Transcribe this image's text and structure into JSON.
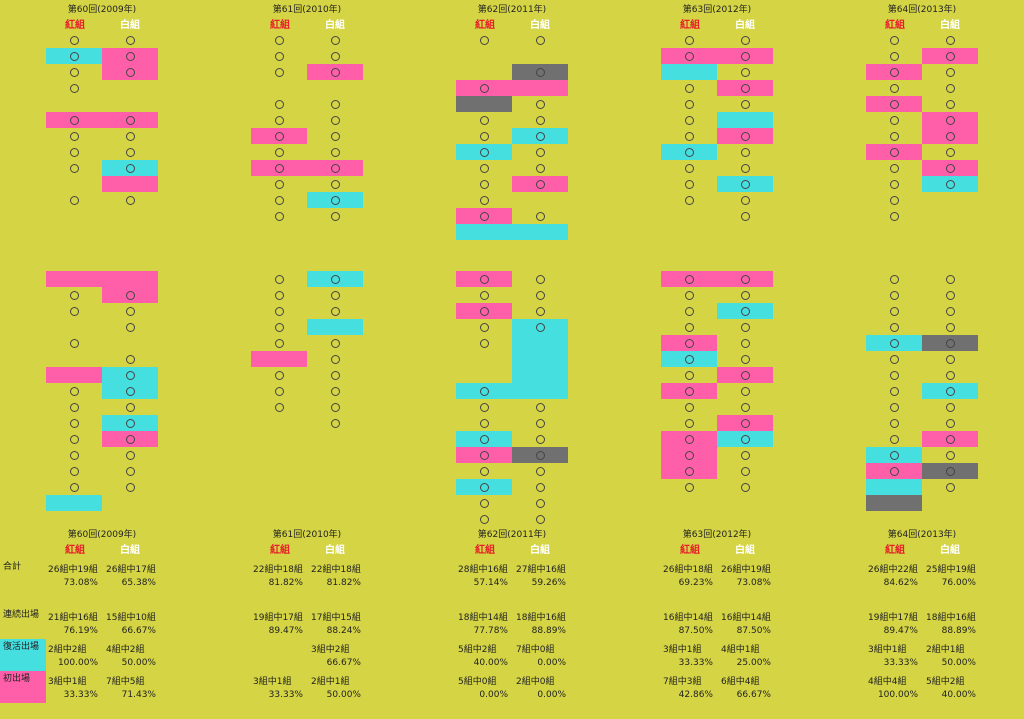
{
  "headers": [
    "第60回(2009年)",
    "第61回(2010年)",
    "第62回(2011年)",
    "第63回(2012年)",
    "第64回(2013年)"
  ],
  "team_red": "紅組",
  "team_white": "白組",
  "legend": {
    "total": "合計",
    "continuing": "連続出場",
    "return": "復活出場",
    "debut": "初出場"
  },
  "colors": {
    "background": "#d4d445",
    "pink": "#ff5fa8",
    "cyan": "#45dfe0",
    "gray": "#707070"
  },
  "stats": [
    {
      "total": [
        "26組中19組",
        "26組中17組",
        "73.08%",
        "65.38%"
      ],
      "cont": [
        "21組中16組",
        "15組中10組",
        "76.19%",
        "66.67%"
      ],
      "ret": [
        "2組中2組",
        "4組中2組",
        "100.00%",
        "50.00%"
      ],
      "debut": [
        "3組中1組",
        "7組中5組",
        "33.33%",
        "71.43%"
      ]
    },
    {
      "total": [
        "22組中18組",
        "22組中18組",
        "81.82%",
        "81.82%"
      ],
      "cont": [
        "19組中17組",
        "17組中15組",
        "89.47%",
        "88.24%"
      ],
      "ret": [
        "",
        "3組中2組",
        "",
        "66.67%"
      ],
      "debut": [
        "3組中1組",
        "2組中1組",
        "33.33%",
        "50.00%"
      ]
    },
    {
      "total": [
        "28組中16組",
        "27組中16組",
        "57.14%",
        "59.26%"
      ],
      "cont": [
        "18組中14組",
        "18組中16組",
        "77.78%",
        "88.89%"
      ],
      "ret": [
        "5組中2組",
        "7組中0組",
        "40.00%",
        "0.00%"
      ],
      "debut": [
        "5組中0組",
        "2組中0組",
        "0.00%",
        "0.00%"
      ]
    },
    {
      "total": [
        "26組中18組",
        "26組中19組",
        "69.23%",
        "73.08%"
      ],
      "cont": [
        "16組中14組",
        "16組中14組",
        "87.50%",
        "87.50%"
      ],
      "ret": [
        "3組中1組",
        "4組中1組",
        "33.33%",
        "25.00%"
      ],
      "debut": [
        "7組中3組",
        "6組中4組",
        "42.86%",
        "66.67%"
      ]
    },
    {
      "total": [
        "26組中22組",
        "25組中19組",
        "84.62%",
        "76.00%"
      ],
      "cont": [
        "19組中17組",
        "18組中16組",
        "89.47%",
        "88.89%"
      ],
      "ret": [
        "3組中1組",
        "2組中1組",
        "33.33%",
        "50.00%"
      ],
      "debut": [
        "4組中4組",
        "5組中2組",
        "100.00%",
        "40.00%"
      ]
    }
  ],
  "grid": [
    {
      "top": {
        "red_circles": [
          0,
          1,
          2,
          3,
          5,
          6,
          7,
          8,
          10
        ],
        "white_circles": [
          0,
          1,
          2,
          5,
          6,
          7,
          8,
          10
        ],
        "cells": [
          [
            "c",
            1,
            1,
            "L"
          ],
          [
            "p",
            1,
            1,
            "R"
          ],
          [
            "p",
            2,
            1,
            "R"
          ],
          [
            "p",
            5,
            1,
            "L"
          ],
          [
            "p",
            5,
            1,
            "R"
          ],
          [
            "c",
            8,
            1,
            "R"
          ],
          [
            "p",
            9,
            1,
            "R"
          ]
        ]
      },
      "bot": {
        "red_circles": [
          1,
          2,
          4,
          7,
          8,
          9,
          10,
          11,
          12,
          13
        ],
        "white_circles": [
          1,
          2,
          3,
          5,
          6,
          7,
          8,
          9,
          10,
          11,
          12,
          13
        ],
        "cells": [
          [
            "p",
            0,
            1,
            "L"
          ],
          [
            "p",
            0,
            2,
            "R"
          ],
          [
            "p",
            6,
            1,
            "L"
          ],
          [
            "c",
            6,
            2,
            "R"
          ],
          [
            "c",
            9,
            1,
            "R"
          ],
          [
            "p",
            10,
            1,
            "R"
          ],
          [
            "c",
            14,
            1,
            "L"
          ]
        ]
      }
    },
    {
      "top": {
        "red_circles": [
          0,
          1,
          2,
          4,
          5,
          6,
          7,
          8,
          9,
          10,
          11
        ],
        "white_circles": [
          0,
          1,
          2,
          4,
          5,
          6,
          7,
          8,
          9,
          10,
          11
        ],
        "cells": [
          [
            "p",
            2,
            1,
            "R"
          ],
          [
            "p",
            6,
            1,
            "L"
          ],
          [
            "p",
            8,
            1,
            "L"
          ],
          [
            "p",
            8,
            1,
            "R"
          ],
          [
            "c",
            10,
            1,
            "R"
          ]
        ]
      },
      "bot": {
        "red_circles": [
          0,
          1,
          2,
          3,
          4,
          6,
          7,
          8
        ],
        "white_circles": [
          0,
          1,
          2,
          4,
          5,
          6,
          7,
          8,
          9
        ],
        "cells": [
          [
            "c",
            0,
            1,
            "R"
          ],
          [
            "c",
            3,
            1,
            "R"
          ],
          [
            "p",
            5,
            1,
            "L"
          ]
        ]
      }
    },
    {
      "top": {
        "red_circles": [
          0,
          3,
          5,
          6,
          7,
          8,
          9,
          10,
          11
        ],
        "white_circles": [
          0,
          2,
          4,
          5,
          6,
          7,
          8,
          9,
          11
        ],
        "cells": [
          [
            "g",
            2,
            1,
            "R"
          ],
          [
            "p",
            3,
            1,
            "L"
          ],
          [
            "p",
            3,
            1,
            "R"
          ],
          [
            "g",
            4,
            1,
            "L"
          ],
          [
            "c",
            6,
            1,
            "R"
          ],
          [
            "c",
            7,
            1,
            "L"
          ],
          [
            "p",
            9,
            1,
            "R"
          ],
          [
            "p",
            11,
            1,
            "L"
          ],
          [
            "c",
            12,
            1,
            "L"
          ],
          [
            "c",
            12,
            1,
            "R"
          ]
        ]
      },
      "bot": {
        "red_circles": [
          0,
          1,
          2,
          3,
          4,
          7,
          8,
          9,
          10,
          11,
          12,
          13,
          14,
          15
        ],
        "white_circles": [
          0,
          1,
          2,
          3,
          8,
          9,
          10,
          11,
          12,
          13,
          14,
          15
        ],
        "cells": [
          [
            "p",
            0,
            1,
            "L"
          ],
          [
            "p",
            2,
            1,
            "L"
          ],
          [
            "c",
            3,
            5,
            "R"
          ],
          [
            "c",
            7,
            1,
            "L"
          ],
          [
            "c",
            10,
            1,
            "L"
          ],
          [
            "p",
            11,
            1,
            "L"
          ],
          [
            "g",
            11,
            1,
            "R"
          ],
          [
            "c",
            13,
            1,
            "L"
          ]
        ]
      }
    },
    {
      "top": {
        "red_circles": [
          0,
          1,
          3,
          4,
          5,
          6,
          7,
          8,
          9,
          10
        ],
        "white_circles": [
          0,
          1,
          2,
          3,
          4,
          6,
          7,
          8,
          9,
          10,
          11
        ],
        "cells": [
          [
            "p",
            1,
            1,
            "L"
          ],
          [
            "p",
            1,
            1,
            "R"
          ],
          [
            "c",
            2,
            1,
            "L"
          ],
          [
            "p",
            3,
            1,
            "R"
          ],
          [
            "c",
            5,
            1,
            "R"
          ],
          [
            "p",
            6,
            1,
            "R"
          ],
          [
            "c",
            7,
            1,
            "L"
          ],
          [
            "c",
            9,
            1,
            "R"
          ]
        ]
      },
      "bot": {
        "red_circles": [
          0,
          1,
          2,
          3,
          4,
          5,
          6,
          7,
          8,
          9,
          10,
          11,
          12,
          13
        ],
        "white_circles": [
          0,
          1,
          2,
          3,
          4,
          5,
          6,
          7,
          8,
          9,
          10,
          11,
          12,
          13
        ],
        "cells": [
          [
            "p",
            0,
            1,
            "L"
          ],
          [
            "p",
            0,
            1,
            "R"
          ],
          [
            "c",
            2,
            1,
            "R"
          ],
          [
            "p",
            4,
            1,
            "L"
          ],
          [
            "c",
            5,
            1,
            "L"
          ],
          [
            "p",
            6,
            1,
            "R"
          ],
          [
            "p",
            7,
            1,
            "L"
          ],
          [
            "p",
            9,
            1,
            "R"
          ],
          [
            "p",
            10,
            3,
            "L"
          ],
          [
            "c",
            10,
            1,
            "R"
          ]
        ]
      }
    },
    {
      "top": {
        "red_circles": [
          0,
          1,
          2,
          3,
          4,
          5,
          6,
          7,
          8,
          9,
          10,
          11
        ],
        "white_circles": [
          0,
          1,
          2,
          3,
          4,
          5,
          6,
          7,
          8,
          9
        ],
        "cells": [
          [
            "p",
            1,
            1,
            "R"
          ],
          [
            "p",
            2,
            1,
            "L"
          ],
          [
            "p",
            4,
            1,
            "L"
          ],
          [
            "p",
            5,
            2,
            "R"
          ],
          [
            "p",
            7,
            1,
            "L"
          ],
          [
            "p",
            8,
            1,
            "R"
          ],
          [
            "c",
            9,
            1,
            "R"
          ]
        ]
      },
      "bot": {
        "red_circles": [
          0,
          1,
          2,
          3,
          4,
          5,
          6,
          7,
          8,
          9,
          10,
          11,
          12
        ],
        "white_circles": [
          0,
          1,
          2,
          3,
          4,
          5,
          6,
          7,
          8,
          9,
          10,
          11,
          12,
          13
        ],
        "cells": [
          [
            "c",
            4,
            1,
            "L"
          ],
          [
            "g",
            4,
            1,
            "R"
          ],
          [
            "c",
            7,
            1,
            "R"
          ],
          [
            "p",
            10,
            1,
            "R"
          ],
          [
            "c",
            11,
            1,
            "L"
          ],
          [
            "p",
            12,
            1,
            "L"
          ],
          [
            "g",
            12,
            1,
            "R"
          ],
          [
            "c",
            13,
            1,
            "L"
          ],
          [
            "g",
            14,
            1,
            "L"
          ]
        ]
      }
    }
  ]
}
